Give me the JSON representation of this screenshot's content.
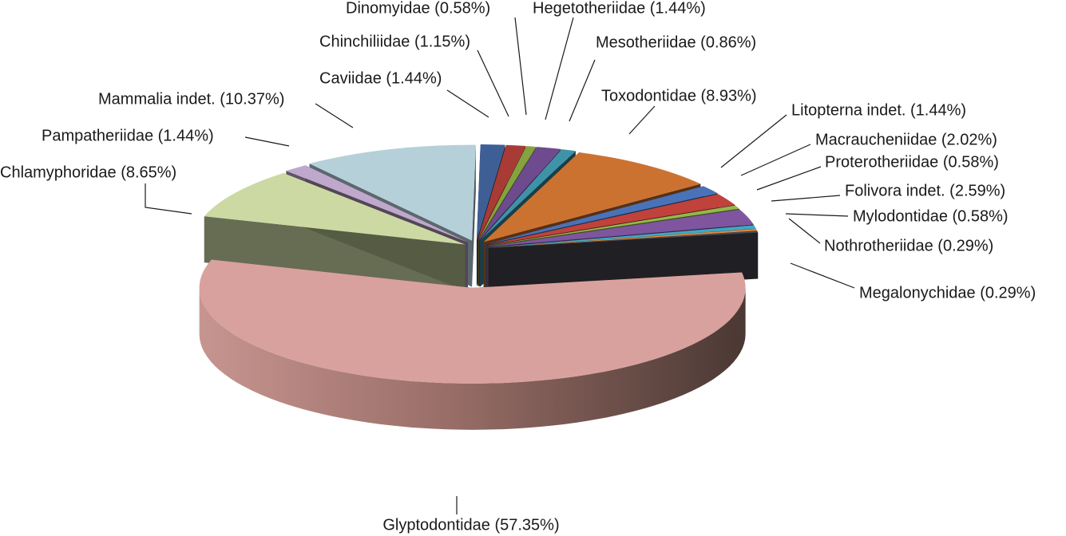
{
  "chart_data": {
    "type": "pie",
    "title": "",
    "exploded": true,
    "three_d": true,
    "slices": [
      {
        "name": "Caviidae",
        "value": 1.44,
        "label": "Caviidae (1.44%)",
        "color": "#3e5f96"
      },
      {
        "name": "Chinchiliidae",
        "value": 1.15,
        "label": "Chinchiliidae (1.15%)",
        "color": "#a83b35"
      },
      {
        "name": "Dinomyidae",
        "value": 0.58,
        "label": "Dinomyidae (0.58%)",
        "color": "#86a23f"
      },
      {
        "name": "Hegetotheriidae",
        "value": 1.44,
        "label": "Hegetotheriidae (1.44%)",
        "color": "#6e4a8e"
      },
      {
        "name": "Mesotheriidae",
        "value": 0.86,
        "label": "Mesotheriidae (0.86%)",
        "color": "#3f93a8"
      },
      {
        "name": "Toxodontidae",
        "value": 8.93,
        "label": "Toxodontidae (8.93%)",
        "color": "#cc7231"
      },
      {
        "name": "Litopterna indet.",
        "value": 1.44,
        "label": "Litopterna indet. (1.44%)",
        "color": "#4a72b8"
      },
      {
        "name": "Macraucheniidae",
        "value": 2.02,
        "label": "Macraucheniidae (2.02%)",
        "color": "#c0423b"
      },
      {
        "name": "Proterotheriidae",
        "value": 0.58,
        "label": "Proterotheriidae (0.58%)",
        "color": "#94b84a"
      },
      {
        "name": "Folivora indet.",
        "value": 2.59,
        "label": "Folivora indet. (2.59%)",
        "color": "#7e559e"
      },
      {
        "name": "Mylodontidae",
        "value": 0.58,
        "label": "Mylodontidae (0.58%)",
        "color": "#3fa8c4"
      },
      {
        "name": "Nothrotheriidae",
        "value": 0.29,
        "label": "Nothrotheriidae (0.29%)",
        "color": "#e58b3c"
      },
      {
        "name": "Megalonychidae",
        "value": 0.29,
        "label": "Megalonychidae (0.29%)",
        "color": "#4a4a55"
      },
      {
        "name": "Glyptodontidae",
        "value": 57.35,
        "label": "Glyptodontidae (57.35%)",
        "color": "#d9a19d"
      },
      {
        "name": "Chlamyphoridae",
        "value": 8.65,
        "label": "Chlamyphoridae (8.65%)",
        "color": "#cdd9a3"
      },
      {
        "name": "Pampatheriidae",
        "value": 1.44,
        "label": "Pampatheriidae (1.44%)",
        "color": "#c0a8cc"
      },
      {
        "name": "Mammalia indet.",
        "value": 10.37,
        "label": "Mammalia indet. (10.37%)",
        "color": "#b5d0d9"
      }
    ]
  }
}
